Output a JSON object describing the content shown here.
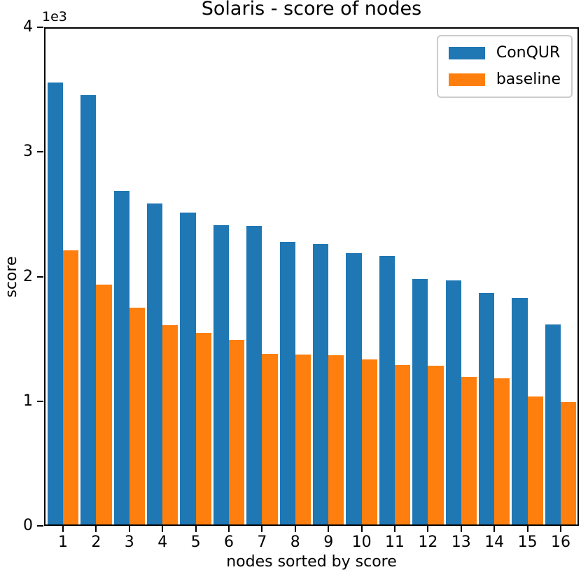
{
  "figure": {
    "title": "Solaris - score of nodes",
    "xlabel": "nodes sorted by score",
    "ylabel": "score",
    "offset_text": "1e3"
  },
  "legend": {
    "entries": [
      {
        "label": "ConQUR",
        "color": "#1f77b4"
      },
      {
        "label": "baseline",
        "color": "#ff7f0e"
      }
    ]
  },
  "chart_data": {
    "type": "bar",
    "title": "Solaris - score of nodes",
    "xlabel": "nodes sorted by score",
    "ylabel": "score",
    "offset_text": "1e3",
    "categories": [
      "1",
      "2",
      "3",
      "4",
      "5",
      "6",
      "7",
      "8",
      "9",
      "10",
      "11",
      "12",
      "13",
      "14",
      "15",
      "16"
    ],
    "series": [
      {
        "name": "ConQUR",
        "color": "#1f77b4",
        "values": [
          3555,
          3455,
          2690,
          2585,
          2515,
          2410,
          2405,
          2280,
          2260,
          2190,
          2165,
          1980,
          1970,
          1870,
          1830,
          1615
        ]
      },
      {
        "name": "baseline",
        "color": "#ff7f0e",
        "values": [
          2210,
          1935,
          1750,
          1610,
          1550,
          1490,
          1380,
          1372,
          1368,
          1335,
          1290,
          1285,
          1195,
          1185,
          1040,
          995
        ]
      }
    ],
    "ylim": [
      0,
      4000
    ],
    "yticks": [
      0,
      1000,
      2000,
      3000,
      4000
    ],
    "ytick_labels": [
      "0",
      "1",
      "2",
      "3",
      "4"
    ],
    "legend_position": "upper right",
    "grid": false
  }
}
